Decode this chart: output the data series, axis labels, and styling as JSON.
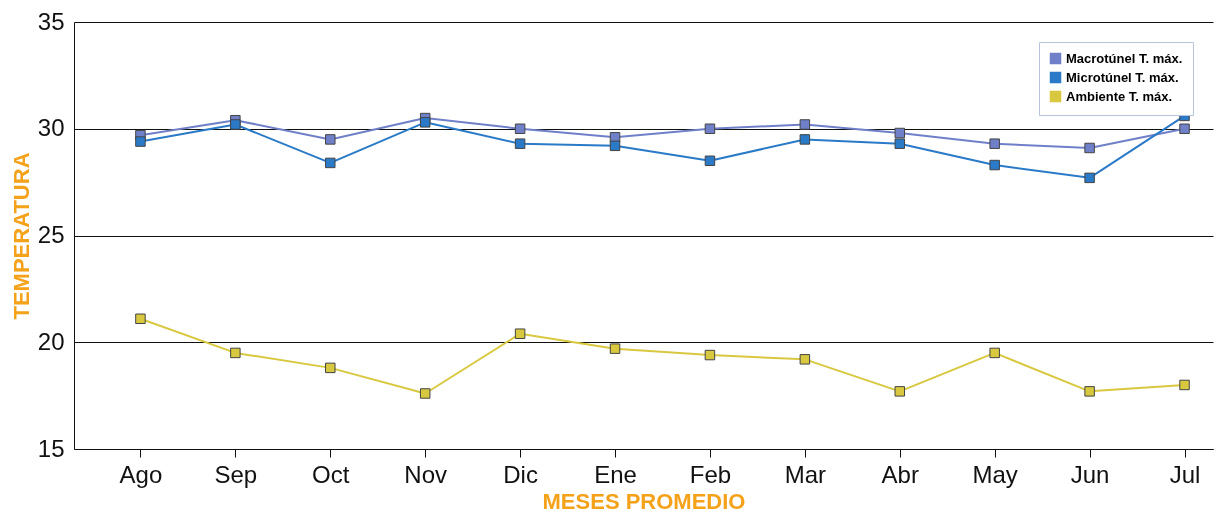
{
  "chart_data": {
    "type": "line",
    "xlabel": "MESES PROMEDIO",
    "ylabel": "TEMPERATURA",
    "categories": [
      "Ago",
      "Sep",
      "Oct",
      "Nov",
      "Dic",
      "Ene",
      "Feb",
      "Mar",
      "Abr",
      "May",
      "Jun",
      "Jul"
    ],
    "series": [
      {
        "name": "Macrotúnel T. máx.",
        "color": "#7080c8",
        "values": [
          29.7,
          30.4,
          29.5,
          30.5,
          30.0,
          29.6,
          30.0,
          30.2,
          29.8,
          29.3,
          29.1,
          30.0
        ]
      },
      {
        "name": "Microtúnel T. máx.",
        "color": "#2a7ac8",
        "values": [
          29.4,
          30.2,
          28.4,
          30.3,
          29.3,
          29.2,
          28.5,
          29.5,
          29.3,
          28.3,
          27.7,
          30.6
        ]
      },
      {
        "name": "Ambiente T. máx.",
        "color": "#d8c840",
        "values": [
          21.1,
          19.5,
          18.8,
          17.6,
          20.4,
          19.7,
          19.4,
          19.2,
          17.7,
          19.5,
          17.7,
          18.0
        ]
      }
    ],
    "ylim": [
      15,
      35
    ],
    "yticks": [
      15,
      20,
      25,
      30,
      35
    ],
    "grid": "y",
    "legend": "top right",
    "marker": "square",
    "line_style": "solid"
  }
}
